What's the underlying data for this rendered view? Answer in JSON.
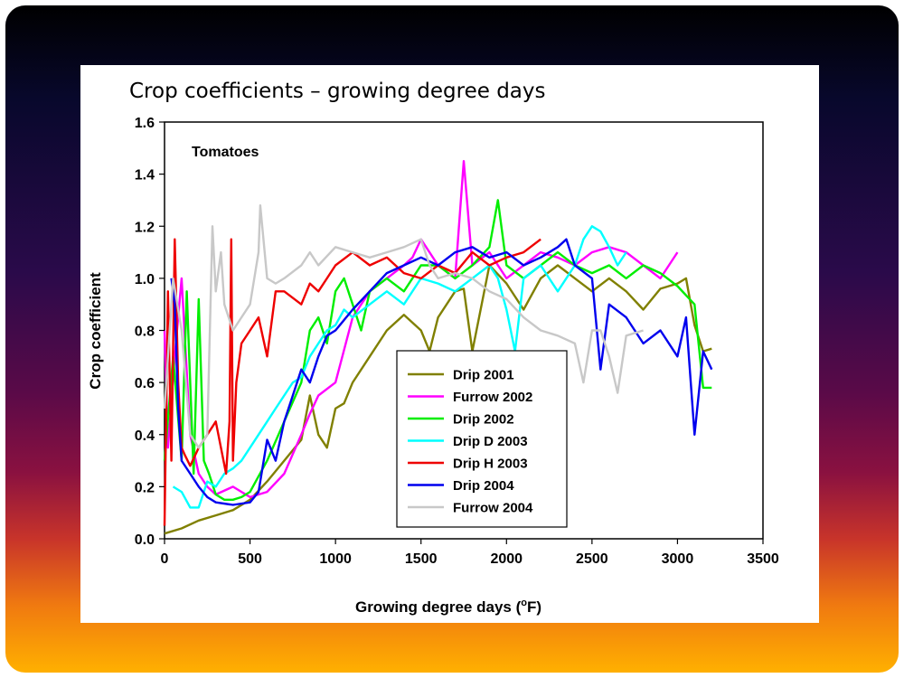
{
  "slide": {
    "title": "Crop coefficients – growing degree days"
  },
  "chart_data": {
    "type": "line",
    "title": "",
    "annotation": "Tomatoes",
    "xlabel": "Growing degree days (oF)",
    "xlabel_main": "Growing degree days (",
    "xlabel_sup": "o",
    "xlabel_end": "F)",
    "ylabel": "Crop coefficient",
    "xlim": [
      0,
      3500
    ],
    "ylim": [
      0,
      1.6
    ],
    "xticks": [
      0,
      500,
      1000,
      1500,
      2000,
      2500,
      3000,
      3500
    ],
    "yticks": [
      "0.0",
      "0.2",
      "0.4",
      "0.6",
      "0.8",
      "1.0",
      "1.2",
      "1.4",
      "1.6"
    ],
    "grid": false,
    "legend_position": "center-bottom",
    "series": [
      {
        "name": "Drip 2001",
        "color": "#808000",
        "x": [
          0,
          100,
          200,
          300,
          400,
          500,
          600,
          700,
          800,
          850,
          900,
          950,
          1000,
          1050,
          1100,
          1200,
          1300,
          1400,
          1500,
          1550,
          1600,
          1700,
          1750,
          1800,
          1900,
          2000,
          2100,
          2200,
          2300,
          2400,
          2500,
          2600,
          2700,
          2800,
          2900,
          3000,
          3050,
          3100,
          3150,
          3200
        ],
        "y": [
          0.02,
          0.04,
          0.07,
          0.09,
          0.11,
          0.15,
          0.22,
          0.3,
          0.38,
          0.55,
          0.4,
          0.35,
          0.5,
          0.52,
          0.6,
          0.7,
          0.8,
          0.86,
          0.8,
          0.72,
          0.85,
          0.95,
          0.96,
          0.72,
          1.05,
          0.98,
          0.88,
          1.0,
          1.05,
          1.0,
          0.95,
          1.0,
          0.95,
          0.88,
          0.96,
          0.98,
          1.0,
          0.82,
          0.72,
          0.73
        ]
      },
      {
        "name": "Furrow 2002",
        "color": "#ff00ff",
        "x": [
          0,
          20,
          60,
          100,
          150,
          200,
          250,
          300,
          400,
          500,
          600,
          700,
          800,
          850,
          900,
          1000,
          1100,
          1200,
          1300,
          1400,
          1450,
          1500,
          1600,
          1700,
          1750,
          1800,
          1900,
          2000,
          2100,
          2200,
          2300,
          2400,
          2500,
          2600,
          2700,
          2800,
          2900,
          3000
        ],
        "y": [
          0.8,
          0.35,
          0.7,
          1.0,
          0.4,
          0.25,
          0.2,
          0.17,
          0.2,
          0.16,
          0.18,
          0.25,
          0.4,
          0.48,
          0.55,
          0.6,
          0.85,
          0.95,
          1.0,
          1.05,
          1.08,
          1.15,
          1.05,
          1.0,
          1.45,
          1.05,
          1.1,
          1.0,
          1.05,
          1.1,
          1.08,
          1.05,
          1.1,
          1.12,
          1.1,
          1.05,
          1.0,
          1.1
        ]
      },
      {
        "name": "Drip 2002",
        "color": "#00ee00",
        "x": [
          0,
          50,
          100,
          130,
          170,
          200,
          230,
          260,
          300,
          350,
          400,
          450,
          500,
          600,
          700,
          800,
          850,
          900,
          950,
          1000,
          1050,
          1100,
          1150,
          1200,
          1300,
          1400,
          1500,
          1600,
          1700,
          1800,
          1900,
          1950,
          2000,
          2100,
          2200,
          2300,
          2400,
          2500,
          2600,
          2700,
          2800,
          2900,
          3000,
          3100,
          3150,
          3200
        ],
        "y": [
          0.3,
          0.7,
          0.3,
          0.95,
          0.25,
          0.92,
          0.3,
          0.25,
          0.17,
          0.15,
          0.15,
          0.16,
          0.18,
          0.3,
          0.45,
          0.6,
          0.8,
          0.85,
          0.75,
          0.95,
          1.0,
          0.9,
          0.8,
          0.95,
          1.0,
          0.95,
          1.05,
          1.05,
          1.0,
          1.05,
          1.12,
          1.3,
          1.05,
          1.0,
          1.05,
          1.1,
          1.05,
          1.02,
          1.05,
          1.0,
          1.05,
          1.02,
          0.97,
          0.9,
          0.58,
          0.58
        ]
      },
      {
        "name": "Drip D 2003",
        "color": "#00ffff",
        "x": [
          50,
          100,
          150,
          200,
          250,
          300,
          350,
          400,
          450,
          500,
          550,
          600,
          650,
          700,
          750,
          800,
          850,
          900,
          950,
          1000,
          1050,
          1100,
          1200,
          1300,
          1400,
          1500,
          1600,
          1700,
          1800,
          1900,
          1950,
          2000,
          2050,
          2100,
          2200,
          2300,
          2400,
          2450,
          2500,
          2550,
          2600,
          2650,
          2700
        ],
        "y": [
          0.2,
          0.18,
          0.12,
          0.12,
          0.22,
          0.2,
          0.25,
          0.27,
          0.3,
          0.35,
          0.4,
          0.45,
          0.5,
          0.55,
          0.6,
          0.62,
          0.7,
          0.75,
          0.8,
          0.82,
          0.88,
          0.85,
          0.9,
          0.95,
          0.9,
          1.0,
          0.98,
          0.95,
          1.0,
          1.05,
          1.0,
          0.88,
          0.72,
          1.0,
          1.05,
          0.95,
          1.05,
          1.15,
          1.2,
          1.18,
          1.12,
          1.05,
          1.1
        ]
      },
      {
        "name": "Drip H 2003",
        "color": "#ee0000",
        "x": [
          0,
          20,
          40,
          60,
          80,
          100,
          120,
          150,
          200,
          250,
          300,
          330,
          360,
          380,
          390,
          400,
          420,
          450,
          500,
          550,
          600,
          650,
          700,
          800,
          850,
          900,
          950,
          1000,
          1100,
          1200,
          1300,
          1400,
          1500,
          1600,
          1700,
          1800,
          1900,
          2000,
          2100,
          2200
        ],
        "y": [
          0.05,
          0.95,
          0.3,
          1.15,
          0.6,
          0.35,
          0.32,
          0.28,
          0.35,
          0.4,
          0.45,
          0.35,
          0.25,
          0.45,
          1.15,
          0.3,
          0.6,
          0.75,
          0.8,
          0.85,
          0.7,
          0.95,
          0.95,
          0.9,
          0.98,
          0.95,
          1.0,
          1.05,
          1.1,
          1.05,
          1.08,
          1.02,
          1.0,
          1.05,
          1.02,
          1.1,
          1.05,
          1.08,
          1.1,
          1.15
        ]
      },
      {
        "name": "Drip 2004",
        "color": "#0000ee",
        "x": [
          40,
          60,
          80,
          100,
          150,
          200,
          250,
          300,
          400,
          500,
          550,
          600,
          650,
          700,
          750,
          800,
          850,
          900,
          950,
          1000,
          1100,
          1200,
          1300,
          1400,
          1500,
          1600,
          1700,
          1800,
          1900,
          2000,
          2100,
          2200,
          2300,
          2350,
          2400,
          2500,
          2550,
          2600,
          2700,
          2800,
          2900,
          3000,
          3050,
          3100,
          3150,
          3200
        ],
        "y": [
          1.0,
          0.9,
          0.5,
          0.3,
          0.25,
          0.2,
          0.16,
          0.14,
          0.13,
          0.14,
          0.18,
          0.38,
          0.3,
          0.45,
          0.55,
          0.65,
          0.6,
          0.7,
          0.78,
          0.8,
          0.88,
          0.95,
          1.02,
          1.05,
          1.08,
          1.05,
          1.1,
          1.12,
          1.08,
          1.1,
          1.05,
          1.08,
          1.12,
          1.15,
          1.05,
          1.0,
          0.65,
          0.9,
          0.85,
          0.75,
          0.8,
          0.7,
          0.85,
          0.4,
          0.72,
          0.65
        ]
      },
      {
        "name": "Furrow 2004",
        "color": "#c8c8c8",
        "x": [
          0,
          50,
          100,
          150,
          200,
          250,
          280,
          300,
          330,
          350,
          400,
          450,
          500,
          550,
          560,
          600,
          650,
          700,
          800,
          850,
          900,
          1000,
          1100,
          1200,
          1300,
          1400,
          1500,
          1550,
          1600,
          1700,
          1800,
          1900,
          2000,
          2100,
          2200,
          2300,
          2400,
          2450,
          2500,
          2550,
          2600,
          2650,
          2700,
          2800
        ],
        "y": [
          0.5,
          1.0,
          0.8,
          0.4,
          0.35,
          0.4,
          1.2,
          0.95,
          1.1,
          0.9,
          0.8,
          0.85,
          0.9,
          1.1,
          1.28,
          1.0,
          0.98,
          1.0,
          1.05,
          1.1,
          1.05,
          1.12,
          1.1,
          1.08,
          1.1,
          1.12,
          1.15,
          1.05,
          1.0,
          1.02,
          1.0,
          0.95,
          0.92,
          0.85,
          0.8,
          0.78,
          0.75,
          0.6,
          0.8,
          0.8,
          0.7,
          0.56,
          0.78,
          0.8
        ]
      }
    ]
  }
}
